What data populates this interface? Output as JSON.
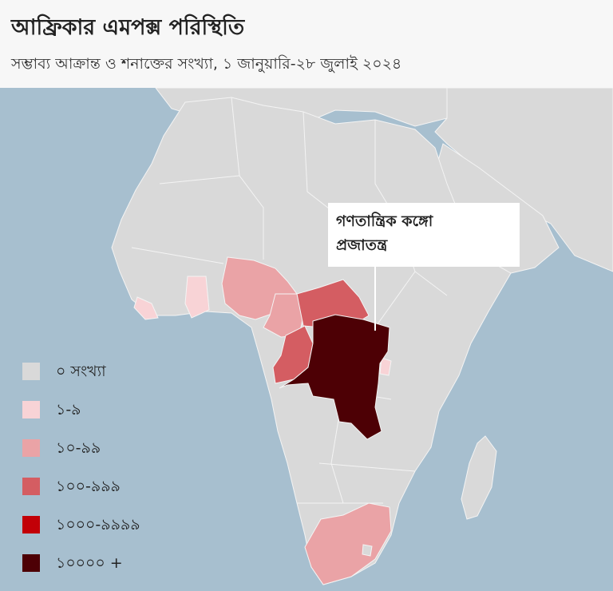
{
  "header": {
    "title": "আফ্রিকার এমপক্স পরিস্থিতি",
    "subtitle": "সম্ভাব্য আক্রান্ত ও শনাক্তের সংখ্যা, ১ জানুয়ারি-২৮ জুলাই ২০২৪"
  },
  "colors": {
    "ocean": "#a7bfcf",
    "land": "#d9d9d9",
    "border": "#f4f4f4",
    "bin_0": "#d9d9d9",
    "bin_1": "#f8d3d6",
    "bin_2": "#eaa3a6",
    "bin_3": "#d45d62",
    "bin_4": "#c20007",
    "bin_5": "#4d0005"
  },
  "callout": {
    "line1": "গণতান্ত্রিক কঙ্গো",
    "line2": "প্রজাতন্ত্র"
  },
  "legend": [
    {
      "label": "০ সংখ্যা",
      "color": "#d9d9d9"
    },
    {
      "label": "১-৯",
      "color": "#f8d3d6"
    },
    {
      "label": "১০-৯৯",
      "color": "#eaa3a6"
    },
    {
      "label": "১০০-৯৯৯",
      "color": "#d45d62"
    },
    {
      "label": "১০০০-৯৯৯৯",
      "color": "#c20007"
    },
    {
      "label": "১০০০০ +",
      "color": "#4d0005"
    }
  ]
}
